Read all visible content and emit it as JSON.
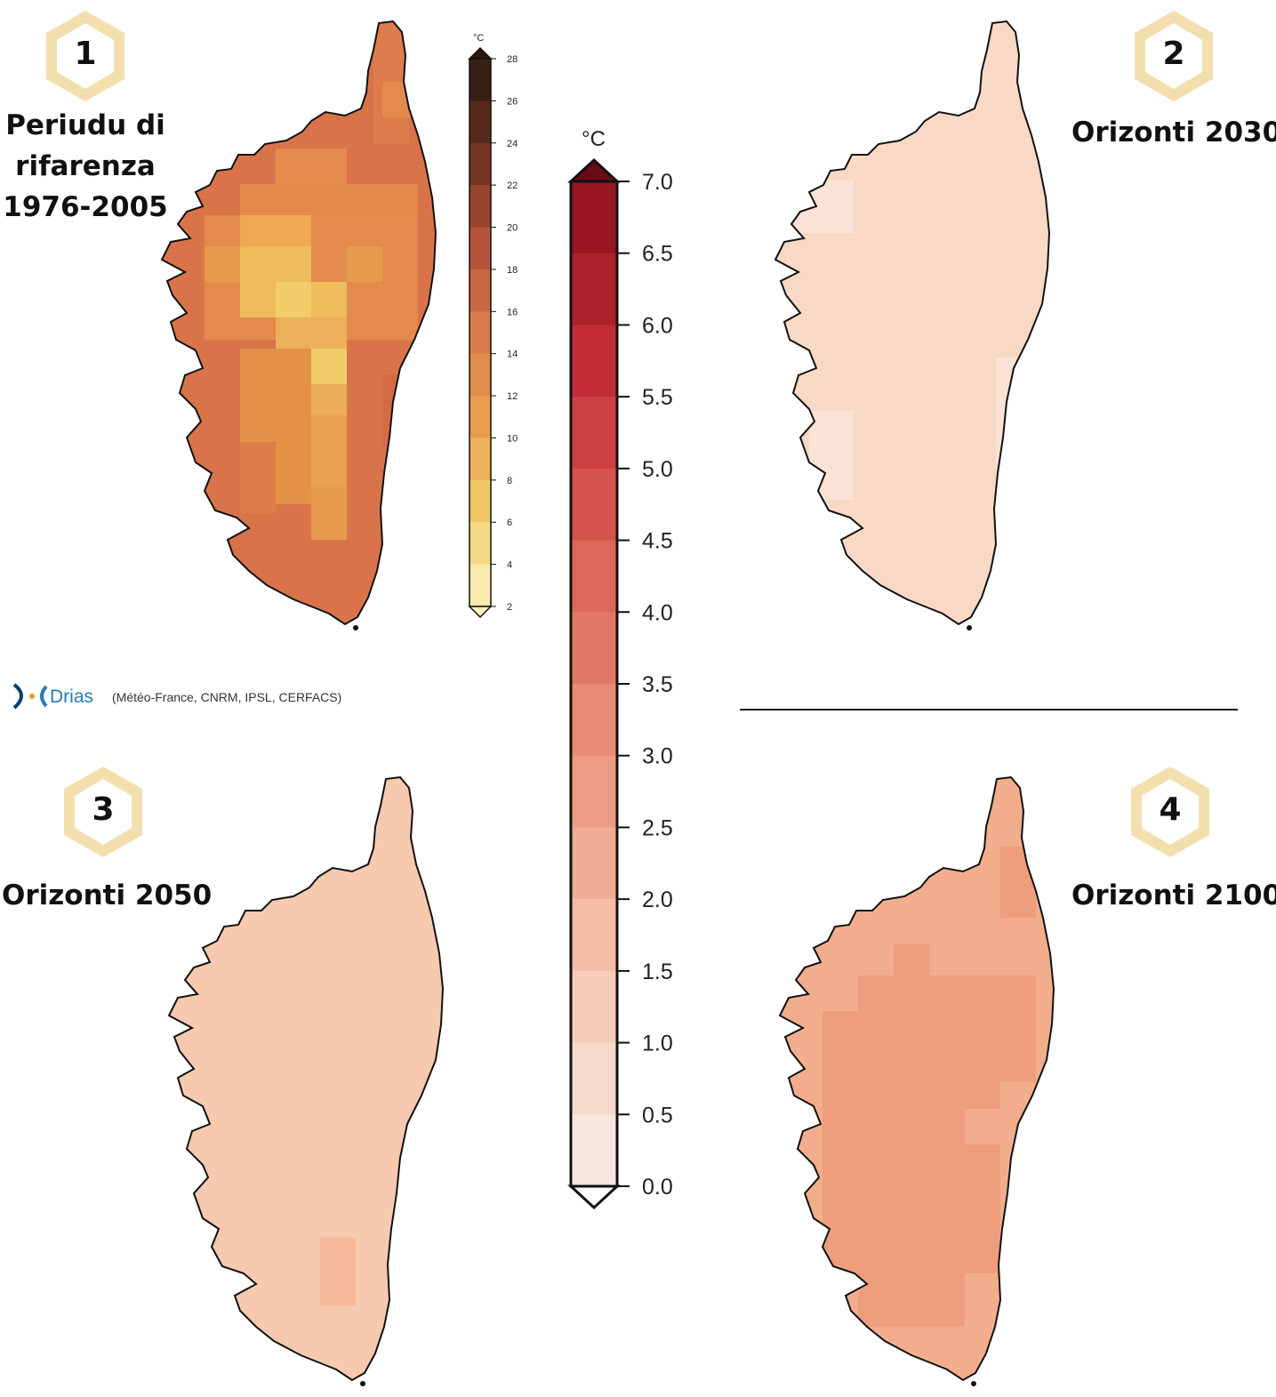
{
  "panels": [
    {
      "number": "1",
      "title_lines": [
        "Periudu di",
        "rifarenza",
        "1976-2005"
      ]
    },
    {
      "number": "2",
      "title_lines": [
        "Orizonti 2030"
      ]
    },
    {
      "number": "3",
      "title_lines": [
        "Orizonti 2050"
      ]
    },
    {
      "number": "4",
      "title_lines": [
        "Orizonti 2100"
      ]
    }
  ],
  "absolute_scale": {
    "unit": "°C",
    "ticks": [
      "28",
      "26",
      "24",
      "22",
      "20",
      "18",
      "16",
      "14",
      "12",
      "10",
      "8",
      "6",
      "4",
      "2"
    ]
  },
  "anomaly_scale": {
    "unit": "°C",
    "ticks": [
      "7.0",
      "6.5",
      "6.0",
      "5.5",
      "5.0",
      "4.5",
      "4.0",
      "3.5",
      "3.0",
      "2.5",
      "2.0",
      "1.5",
      "1.0",
      "0.5",
      "0.0"
    ]
  },
  "credit": {
    "logo_text": "Drias",
    "text": "(Météo-France, CNRM, IPSL, CERFACS)"
  },
  "colors": {
    "hexagon": "#f3dfae",
    "reference_map": "#d9744a",
    "reference_map_cool": "#eebc5a",
    "horizon_2030": "#f8d9c6",
    "horizon_2050": "#f7c9ae",
    "horizon_2100": "#ee9e7c",
    "anomaly_top": "#8e0f1e",
    "anomaly_bottom": "#f8ece6"
  }
}
